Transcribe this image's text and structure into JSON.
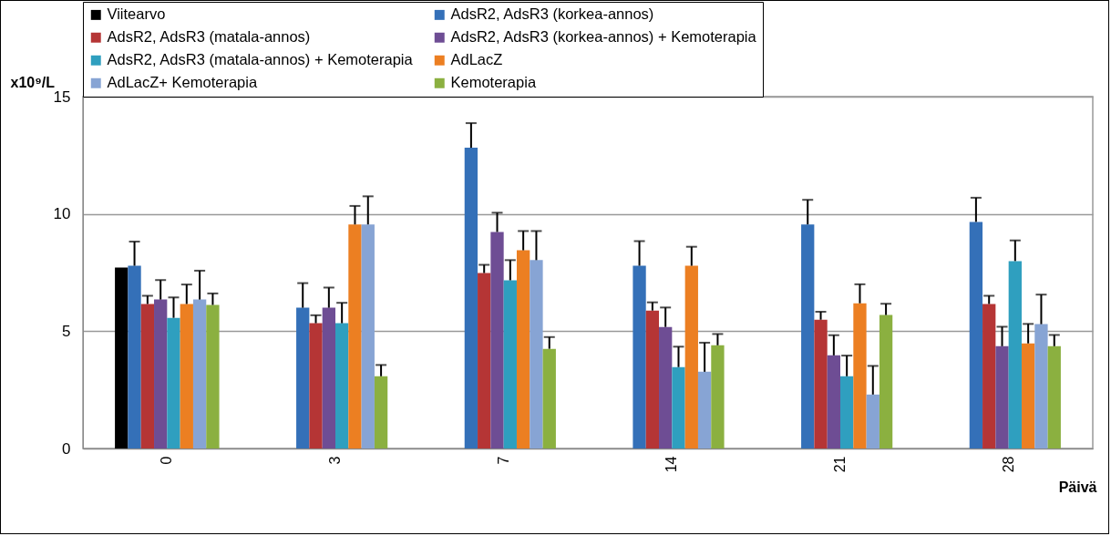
{
  "chart_data": {
    "type": "bar",
    "ylabel": "x10⁹/L",
    "xlabel": "Päivä",
    "categories": [
      "0",
      "3",
      "7",
      "14",
      "21",
      "28"
    ],
    "ylim": [
      0,
      15
    ],
    "yticks": [
      0,
      5,
      10,
      15
    ],
    "grid": "y",
    "legend": "top",
    "series": [
      {
        "name": "Viitearvo",
        "color": "#000000",
        "values": [
          7.71,
          null,
          null,
          null,
          null,
          null
        ]
      },
      {
        "name": "AdsR2, AdsR3 (korkea-annos)",
        "color": "#3470b8",
        "values": [
          7.79,
          6.0,
          12.82,
          7.79,
          9.55,
          9.66
        ],
        "errors": [
          [
            7.79,
            8.82
          ],
          [
            6.0,
            7.05
          ],
          [
            12.82,
            13.87
          ],
          [
            7.79,
            8.84
          ],
          [
            9.55,
            10.6
          ],
          [
            9.66,
            10.69
          ]
        ]
      },
      {
        "name": "AdsR2, AdsR3 (matala-annos)",
        "color": "#b53535",
        "values": [
          6.16,
          5.34,
          7.48,
          5.88,
          5.49,
          6.16
        ],
        "errors": [
          [
            6.16,
            6.51
          ],
          [
            5.34,
            5.68
          ],
          [
            7.48,
            7.83
          ],
          [
            5.88,
            6.23
          ],
          [
            5.49,
            5.83
          ],
          [
            6.16,
            6.51
          ]
        ]
      },
      {
        "name": "AdsR2, AdsR3 (korkea-annos) + Kemoterapia",
        "color": "#6e4d94",
        "values": [
          6.35,
          6.0,
          9.23,
          5.18,
          3.97,
          4.36
        ],
        "errors": [
          [
            6.35,
            7.18
          ],
          [
            6.0,
            6.86
          ],
          [
            9.23,
            10.05
          ],
          [
            5.18,
            6.01
          ],
          [
            3.97,
            4.83
          ],
          [
            4.36,
            5.19
          ]
        ]
      },
      {
        "name": "AdsR2, AdsR3 (matala-annos) + Kemoterapia",
        "color": "#2f9fbf",
        "values": [
          5.57,
          5.34,
          7.17,
          3.47,
          3.08,
          7.99
        ],
        "errors": [
          [
            5.57,
            6.44
          ],
          [
            5.34,
            6.21
          ],
          [
            7.17,
            8.03
          ],
          [
            3.47,
            4.34
          ],
          [
            3.08,
            3.96
          ],
          [
            7.99,
            8.87
          ]
        ]
      },
      {
        "name": "AdLacZ",
        "color": "#ec7f22",
        "values": [
          6.16,
          9.55,
          8.45,
          7.79,
          6.19,
          4.48
        ],
        "errors": [
          [
            6.16,
            6.99
          ],
          [
            9.55,
            10.34
          ],
          [
            8.45,
            9.27
          ],
          [
            7.79,
            8.6
          ],
          [
            6.19,
            7.0
          ],
          [
            4.48,
            5.31
          ]
        ]
      },
      {
        "name": "AdLacZ+ Kemoterapia",
        "color": "#87a4d4",
        "values": [
          6.35,
          9.55,
          8.03,
          3.27,
          2.3,
          5.3
        ],
        "errors": [
          [
            6.35,
            7.58
          ],
          [
            9.55,
            10.75
          ],
          [
            8.03,
            9.27
          ],
          [
            3.27,
            4.51
          ],
          [
            2.3,
            3.52
          ],
          [
            5.3,
            6.56
          ]
        ]
      },
      {
        "name": "Kemoterapia",
        "color": "#8bb040",
        "values": [
          6.12,
          3.08,
          4.25,
          4.4,
          5.69,
          4.36
        ],
        "errors": [
          [
            6.12,
            6.61
          ],
          [
            3.08,
            3.56
          ],
          [
            4.25,
            4.75
          ],
          [
            4.4,
            4.88
          ],
          [
            5.69,
            6.17
          ],
          [
            4.36,
            4.84
          ]
        ]
      }
    ]
  }
}
